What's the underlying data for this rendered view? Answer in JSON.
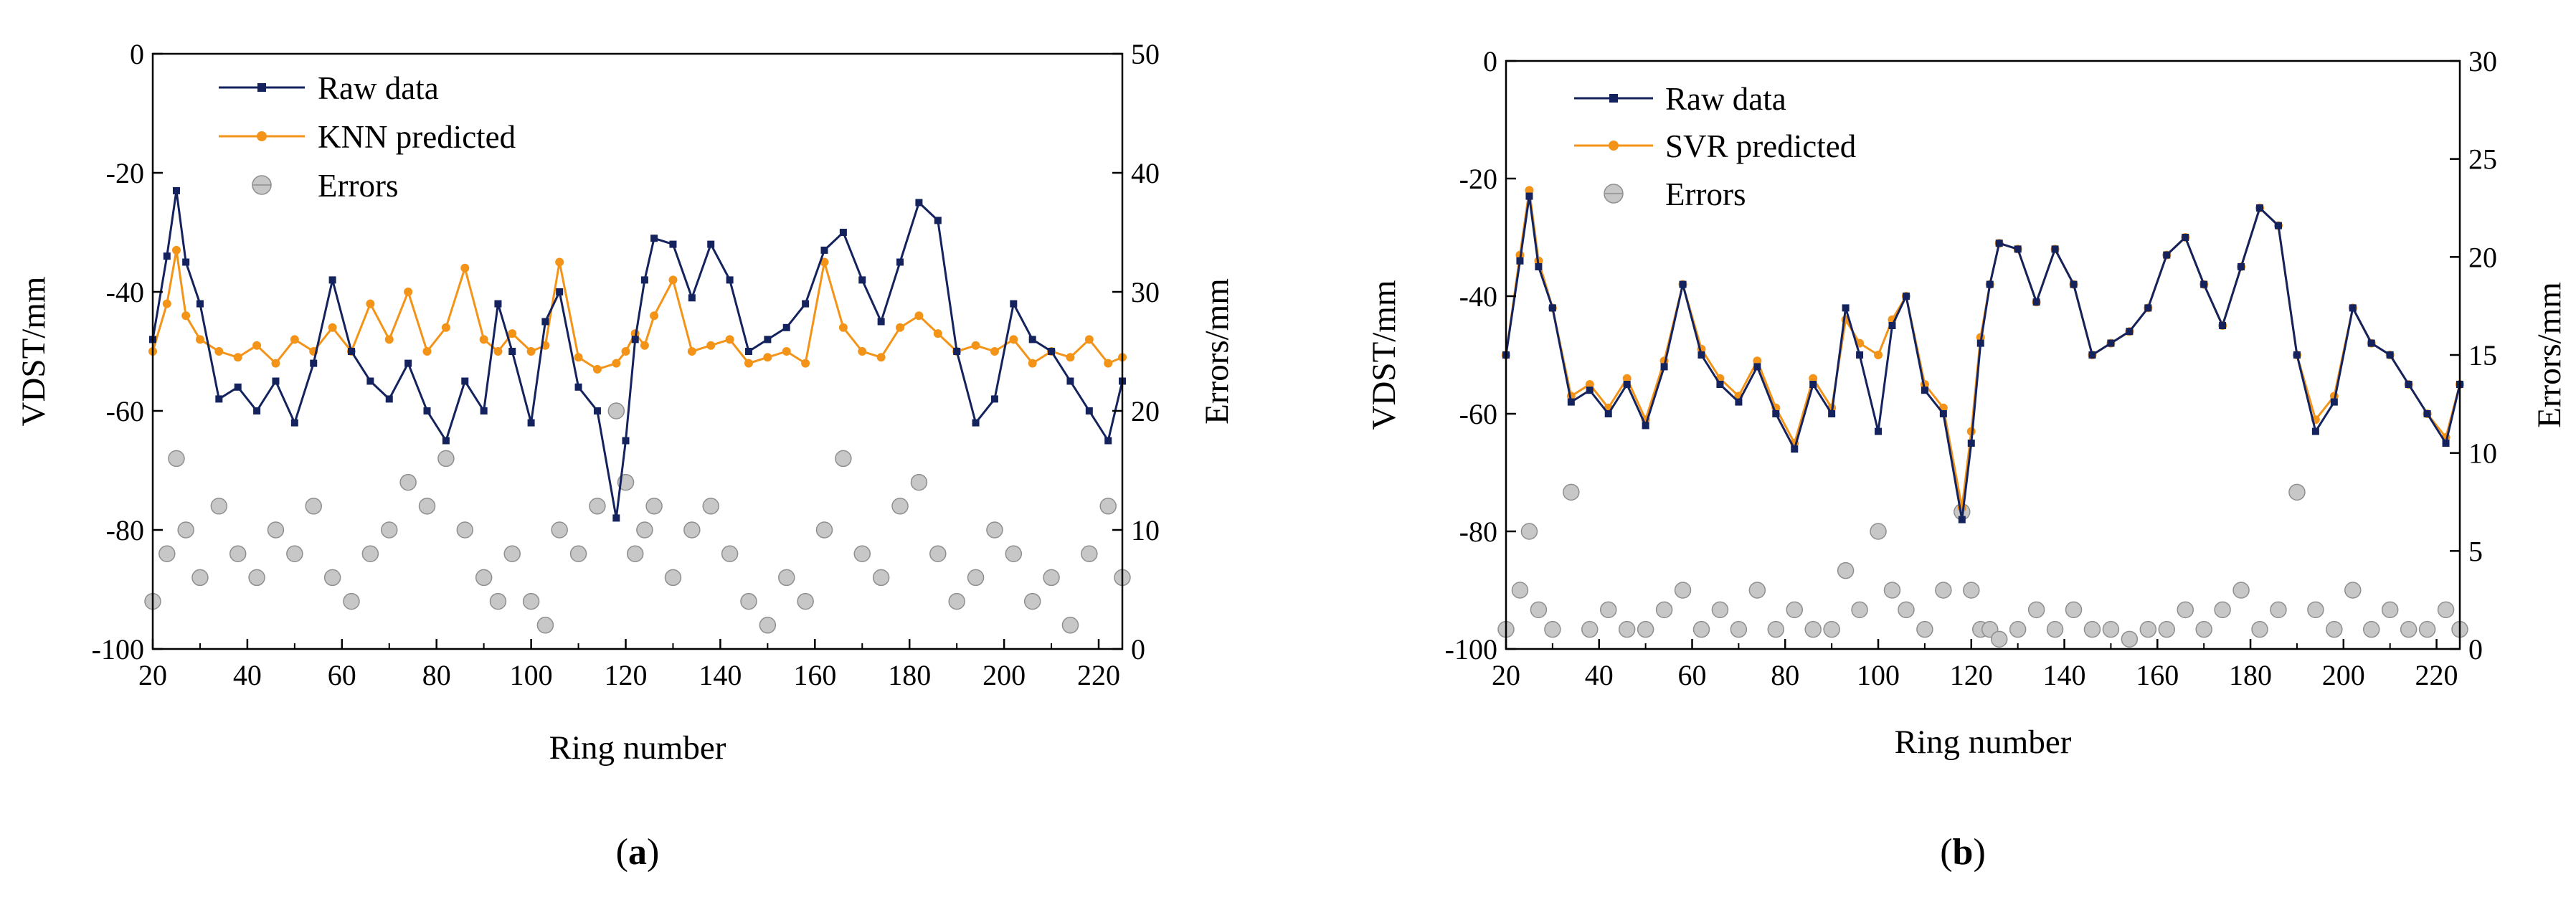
{
  "figure": {
    "panels": [
      {
        "label": "(a)",
        "letter": "a",
        "legend": [
          {
            "label": "Raw data",
            "kind": "raw"
          },
          {
            "label": "KNN predicted",
            "kind": "pred"
          },
          {
            "label": "Errors",
            "kind": "err"
          }
        ]
      },
      {
        "label": "(b)",
        "letter": "b",
        "legend": [
          {
            "label": "Raw data",
            "kind": "raw"
          },
          {
            "label": "SVR predicted",
            "kind": "pred"
          },
          {
            "label": "Errors",
            "kind": "err"
          }
        ]
      }
    ]
  },
  "colors": {
    "raw": "#14235e",
    "pred": "#f39419",
    "err_fill": "#c7c7c7",
    "err_stroke": "#8f8f8f"
  },
  "chart_data": [
    {
      "type": "line",
      "title": "(a)",
      "xlabel": "Ring number",
      "ylabel": "VDST/mm",
      "y2label": "Errors/mm",
      "xlim": [
        20,
        225
      ],
      "ylim": [
        -100,
        0
      ],
      "y2lim": [
        0,
        50
      ],
      "xticks": [
        "20",
        "40",
        "60",
        "80",
        "100",
        "120",
        "140",
        "160",
        "180",
        "200",
        "220"
      ],
      "yticks": [
        "0",
        "-20",
        "-40",
        "-60",
        "-80",
        "-100"
      ],
      "y2ticks": [
        "50",
        "40",
        "30",
        "20",
        "10",
        "0"
      ],
      "legend_position": "top-left",
      "x": [
        20,
        23,
        25,
        27,
        30,
        34,
        38,
        42,
        46,
        50,
        54,
        58,
        62,
        66,
        70,
        74,
        78,
        82,
        86,
        90,
        93,
        96,
        100,
        103,
        106,
        110,
        114,
        118,
        120,
        122,
        124,
        126,
        130,
        134,
        138,
        142,
        146,
        150,
        154,
        158,
        162,
        166,
        170,
        174,
        178,
        182,
        186,
        190,
        194,
        198,
        202,
        206,
        210,
        214,
        218,
        222,
        225
      ],
      "series": [
        {
          "name": "Raw data",
          "values": [
            -48,
            -34,
            -23,
            -35,
            -42,
            -58,
            -56,
            -60,
            -55,
            -62,
            -52,
            -38,
            -50,
            -55,
            -58,
            -52,
            -60,
            -65,
            -55,
            -60,
            -42,
            -50,
            -62,
            -45,
            -40,
            -56,
            -60,
            -78,
            -65,
            -48,
            -38,
            -31,
            -32,
            -41,
            -32,
            -38,
            -50,
            -48,
            -46,
            -42,
            -33,
            -30,
            -38,
            -45,
            -35,
            -25,
            -28,
            -50,
            -62,
            -58,
            -42,
            -48,
            -50,
            -55,
            -60,
            -65,
            -55
          ]
        },
        {
          "name": "KNN predicted",
          "values": [
            -50,
            -42,
            -33,
            -44,
            -48,
            -50,
            -51,
            -49,
            -52,
            -48,
            -50,
            -46,
            -50,
            -42,
            -48,
            -40,
            -50,
            -46,
            -36,
            -48,
            -50,
            -47,
            -50,
            -49,
            -35,
            -51,
            -53,
            -52,
            -50,
            -47,
            -49,
            -44,
            -38,
            -50,
            -49,
            -48,
            -52,
            -51,
            -50,
            -52,
            -35,
            -46,
            -50,
            -51,
            -46,
            -44,
            -47,
            -50,
            -49,
            -50,
            -48,
            -52,
            -50,
            -51,
            -48,
            -52,
            -51
          ]
        },
        {
          "name": "Errors",
          "y_axis": "right",
          "values": [
            4,
            8,
            16,
            10,
            6,
            12,
            8,
            6,
            10,
            8,
            12,
            6,
            4,
            8,
            10,
            14,
            12,
            16,
            10,
            6,
            4,
            8,
            4,
            2,
            10,
            8,
            12,
            20,
            14,
            8,
            10,
            12,
            6,
            10,
            12,
            8,
            4,
            2,
            6,
            4,
            10,
            16,
            8,
            6,
            12,
            14,
            8,
            4,
            6,
            10,
            8,
            4,
            6,
            2,
            8,
            12,
            6
          ]
        }
      ]
    },
    {
      "type": "line",
      "title": "(b)",
      "xlabel": "Ring number",
      "ylabel": "VDST/mm",
      "y2label": "Errors/mm",
      "xlim": [
        20,
        225
      ],
      "ylim": [
        -100,
        0
      ],
      "y2lim": [
        0,
        30
      ],
      "xticks": [
        "20",
        "40",
        "60",
        "80",
        "100",
        "120",
        "140",
        "160",
        "180",
        "200",
        "220"
      ],
      "yticks": [
        "0",
        "-20",
        "-40",
        "-60",
        "-80",
        "-100"
      ],
      "y2ticks": [
        "30",
        "25",
        "20",
        "15",
        "10",
        "5",
        "0"
      ],
      "legend_position": "top-left",
      "x": [
        20,
        23,
        25,
        27,
        30,
        34,
        38,
        42,
        46,
        50,
        54,
        58,
        62,
        66,
        70,
        74,
        78,
        82,
        86,
        90,
        93,
        96,
        100,
        103,
        106,
        110,
        114,
        118,
        120,
        122,
        124,
        126,
        130,
        134,
        138,
        142,
        146,
        150,
        154,
        158,
        162,
        166,
        170,
        174,
        178,
        182,
        186,
        190,
        194,
        198,
        202,
        206,
        210,
        214,
        218,
        222,
        225
      ],
      "series": [
        {
          "name": "Raw data",
          "values": [
            -50,
            -34,
            -23,
            -35,
            -42,
            -58,
            -56,
            -60,
            -55,
            -62,
            -52,
            -38,
            -50,
            -55,
            -58,
            -52,
            -60,
            -66,
            -55,
            -60,
            -42,
            -50,
            -63,
            -45,
            -40,
            -56,
            -60,
            -78,
            -65,
            -48,
            -38,
            -31,
            -32,
            -41,
            -32,
            -38,
            -50,
            -48,
            -46,
            -42,
            -33,
            -30,
            -38,
            -45,
            -35,
            -25,
            -28,
            -50,
            -63,
            -58,
            -42,
            -48,
            -50,
            -55,
            -60,
            -65,
            -55
          ]
        },
        {
          "name": "SVR predicted",
          "values": [
            -50,
            -33,
            -22,
            -34,
            -42,
            -57,
            -55,
            -59,
            -54,
            -61,
            -51,
            -38,
            -49,
            -54,
            -57,
            -51,
            -59,
            -65,
            -54,
            -59,
            -44,
            -48,
            -50,
            -44,
            -40,
            -55,
            -59,
            -76,
            -63,
            -47,
            -38,
            -31,
            -32,
            -41,
            -32,
            -38,
            -50,
            -48,
            -46,
            -42,
            -33,
            -30,
            -38,
            -45,
            -35,
            -25,
            -28,
            -50,
            -61,
            -57,
            -42,
            -48,
            -50,
            -55,
            -60,
            -64,
            -55
          ]
        },
        {
          "name": "Errors",
          "y_axis": "right",
          "values": [
            1,
            3,
            6,
            2,
            1,
            8,
            1,
            2,
            1,
            1,
            2,
            3,
            1,
            2,
            1,
            3,
            1,
            2,
            1,
            1,
            4,
            2,
            6,
            3,
            2,
            1,
            3,
            7,
            3,
            1,
            1,
            0.5,
            1,
            2,
            1,
            2,
            1,
            1,
            0.5,
            1,
            1,
            2,
            1,
            2,
            3,
            1,
            2,
            8,
            2,
            1,
            3,
            1,
            2,
            1,
            1,
            2,
            1
          ]
        }
      ]
    }
  ]
}
